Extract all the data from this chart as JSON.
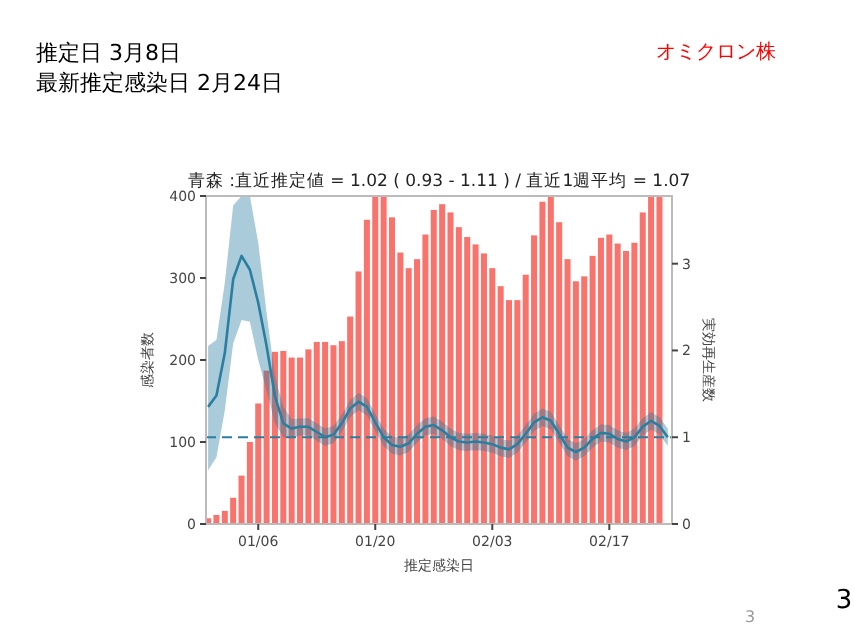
{
  "chart_data": {
    "type": "bar",
    "title": "青森 :直近推定値 = 1.02 ( 0.93 - 1.11 ) / 直近1週平均 = 1.07",
    "xlabel": "推定感染日",
    "ylabel": "感染者数",
    "y2label": "実効再生産数",
    "annotations": [
      "推定日  3月8日",
      "最新推定感染日  2月24日",
      "オミクロン株",
      "3",
      "3"
    ],
    "ylim": [
      0,
      400
    ],
    "yticks": [
      0,
      100,
      200,
      300,
      400
    ],
    "y2lim": [
      0,
      3.78
    ],
    "y2ticks": [
      0,
      1,
      2,
      3
    ],
    "categories": [
      null,
      null,
      null,
      null,
      null,
      null,
      "01/06",
      null,
      null,
      null,
      null,
      null,
      null,
      null,
      null,
      null,
      null,
      null,
      null,
      null,
      "01/20",
      null,
      null,
      null,
      null,
      null,
      null,
      null,
      null,
      null,
      null,
      null,
      null,
      null,
      "02/03",
      null,
      null,
      null,
      null,
      null,
      null,
      null,
      null,
      null,
      null,
      null,
      null,
      null,
      "02/17",
      null,
      null,
      null,
      null,
      null,
      null,
      null
    ],
    "series": [
      {
        "color": "#f8736b",
        "values": [
          7,
          11,
          16,
          32,
          59,
          100,
          147,
          187,
          210,
          211,
          203,
          203,
          213,
          222,
          222,
          218,
          223,
          253,
          308,
          371,
          400,
          400,
          374,
          331,
          312,
          323,
          353,
          383,
          390,
          380,
          362,
          350,
          341,
          330,
          312,
          290,
          273,
          273,
          304,
          352,
          393,
          400,
          368,
          323,
          296,
          302,
          327,
          349,
          353,
          342,
          333,
          343,
          380,
          400,
          400,
          null
        ]
      },
      {
        "type": "line",
        "axis": "y2",
        "color": "#2a7ea0",
        "values": [
          1.35,
          1.48,
          1.97,
          2.82,
          3.09,
          2.93,
          2.55,
          2.05,
          1.47,
          1.16,
          1.1,
          1.12,
          1.12,
          1.06,
          1.0,
          1.03,
          1.16,
          1.33,
          1.41,
          1.35,
          1.17,
          1.0,
          0.91,
          0.89,
          0.93,
          1.04,
          1.12,
          1.14,
          1.08,
          1.0,
          0.95,
          0.94,
          0.95,
          0.94,
          0.92,
          0.88,
          0.86,
          0.92,
          1.04,
          1.17,
          1.23,
          1.19,
          1.04,
          0.88,
          0.83,
          0.88,
          0.98,
          1.05,
          1.04,
          0.98,
          0.95,
          1.0,
          1.12,
          1.19,
          1.13,
          1.0
        ],
        "upper": [
          2.05,
          2.12,
          2.78,
          3.67,
          3.78,
          3.78,
          3.24,
          2.43,
          1.7,
          1.35,
          1.21,
          1.22,
          1.22,
          1.16,
          1.1,
          1.13,
          1.26,
          1.43,
          1.51,
          1.45,
          1.27,
          1.1,
          1.01,
          0.99,
          1.03,
          1.14,
          1.22,
          1.24,
          1.18,
          1.1,
          1.05,
          1.04,
          1.05,
          1.04,
          1.02,
          0.98,
          0.96,
          1.02,
          1.14,
          1.27,
          1.33,
          1.29,
          1.14,
          0.98,
          0.93,
          0.98,
          1.08,
          1.15,
          1.14,
          1.08,
          1.05,
          1.1,
          1.22,
          1.29,
          1.23,
          1.1
        ],
        "lower": [
          0.62,
          0.77,
          1.31,
          2.08,
          2.35,
          2.33,
          1.89,
          1.54,
          1.16,
          1.0,
          0.99,
          1.02,
          1.02,
          0.96,
          0.9,
          0.93,
          1.06,
          1.23,
          1.31,
          1.25,
          1.07,
          0.9,
          0.81,
          0.79,
          0.83,
          0.94,
          1.02,
          1.04,
          0.98,
          0.9,
          0.85,
          0.84,
          0.85,
          0.84,
          0.82,
          0.78,
          0.76,
          0.82,
          0.94,
          1.07,
          1.13,
          1.09,
          0.94,
          0.78,
          0.73,
          0.78,
          0.88,
          0.95,
          0.94,
          0.88,
          0.85,
          0.9,
          1.02,
          1.09,
          1.03,
          0.9
        ]
      }
    ],
    "ref_lines": [
      {
        "axis": "y2",
        "value": 1,
        "color": "#2a7ea0",
        "line_style": "dashed"
      }
    ],
    "grid": false
  }
}
